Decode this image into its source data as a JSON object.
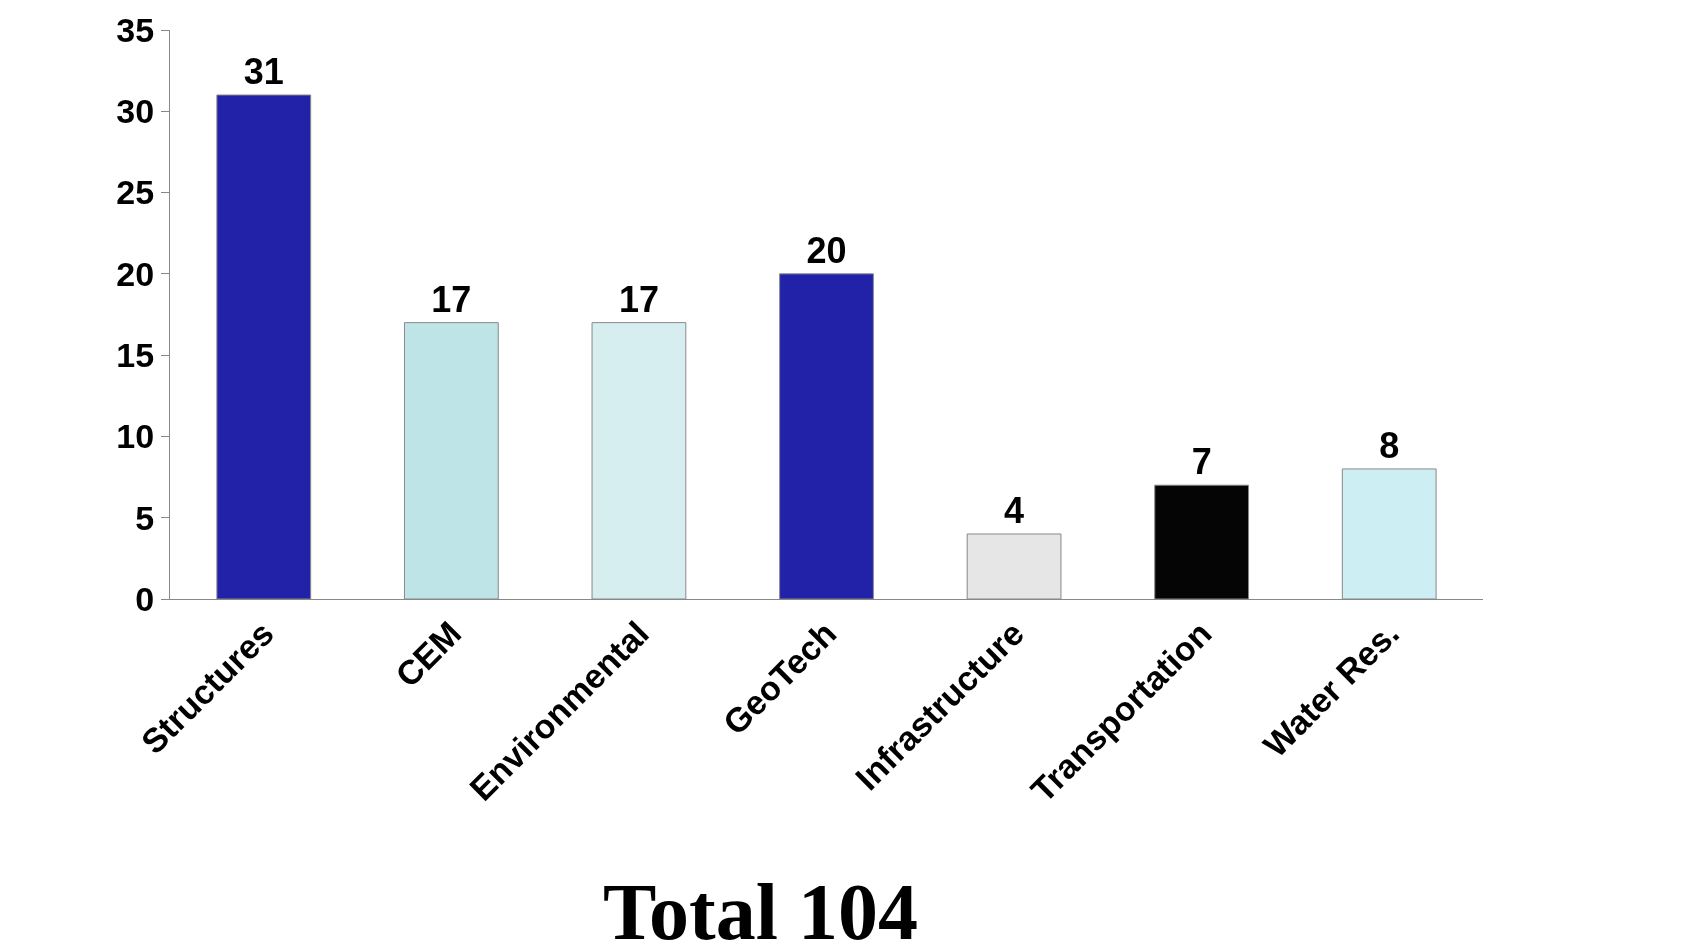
{
  "chart_data": {
    "type": "bar",
    "categories": [
      "Structures",
      "CEM",
      "Environmental",
      "GeoTech",
      "Infrastructure",
      "Transportation",
      "Water Res."
    ],
    "values": [
      31,
      17,
      17,
      20,
      4,
      7,
      8
    ],
    "colors": [
      "#2222a8",
      "#bfe4e8",
      "#d6eef0",
      "#2222a8",
      "#e6e6e6",
      "#050505",
      "#cdeef2"
    ],
    "ylim": [
      0,
      35
    ],
    "yticks": [
      0,
      5,
      10,
      15,
      20,
      25,
      30,
      35
    ],
    "grid": false,
    "data_labels": true,
    "annotations": [
      "Total 104"
    ]
  }
}
